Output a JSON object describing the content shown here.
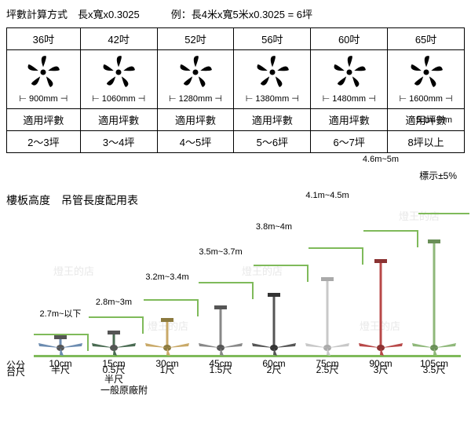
{
  "formula_left": "坪數計算方式　長x寬x0.3025",
  "formula_right": "例：長4米x寬5米x0.3025 = 6坪",
  "size_table": {
    "headers": [
      "36吋",
      "42吋",
      "52吋",
      "56吋",
      "60吋",
      "65吋"
    ],
    "mm": [
      "900mm",
      "1060mm",
      "1280mm",
      "1380mm",
      "1480mm",
      "1600mm"
    ],
    "ping_label": "適用坪數",
    "ping_values": [
      "2～3坪",
      "3～4坪",
      "4～5坪",
      "5～6坪",
      "6～7坪",
      "8坪以上"
    ]
  },
  "chart": {
    "title": "樓板高度　吊管長度配用表",
    "tolerance": "標示±5%",
    "watermark_text": "燈王的店",
    "fans": [
      {
        "height": "2.7m~以下",
        "cm": "10cm",
        "chi": "半尺",
        "rod": 8,
        "color": "#6b8bb0",
        "cap": "#555"
      },
      {
        "height": "2.8m~3m",
        "cm": "15cm",
        "chi": "0.5尺\n半尺",
        "rod": 14,
        "color": "#4a6b52",
        "cap": "#555"
      },
      {
        "height": "3.2m~3.4m",
        "cm": "30cm",
        "chi": "1尺",
        "rod": 30,
        "color": "#c9a968",
        "cap": "#8b7a3f"
      },
      {
        "height": "3.5m~3.7m",
        "cm": "45cm",
        "chi": "1.5尺",
        "rod": 46,
        "color": "#888",
        "cap": "#555"
      },
      {
        "height": "3.8m~4m",
        "cm": "60cm",
        "chi": "2尺",
        "rod": 62,
        "color": "#555",
        "cap": "#333"
      },
      {
        "height": "4.1m~4.5m",
        "cm": "75cm",
        "chi": "2.5尺",
        "rod": 82,
        "color": "#c8c8c8",
        "cap": "#aaa"
      },
      {
        "height": "4.6m~5m",
        "cm": "90cm",
        "chi": "3尺",
        "rod": 105,
        "color": "#b84848",
        "cap": "#8a3232"
      },
      {
        "height": "5.1m~6m",
        "cm": "105cm",
        "chi": "3.5尺",
        "rod": 130,
        "color": "#8fb87a",
        "cap": "#6a8f58"
      }
    ],
    "cm_label": "公分",
    "chi_label": "台尺",
    "factory_note": "一般原廠附"
  }
}
